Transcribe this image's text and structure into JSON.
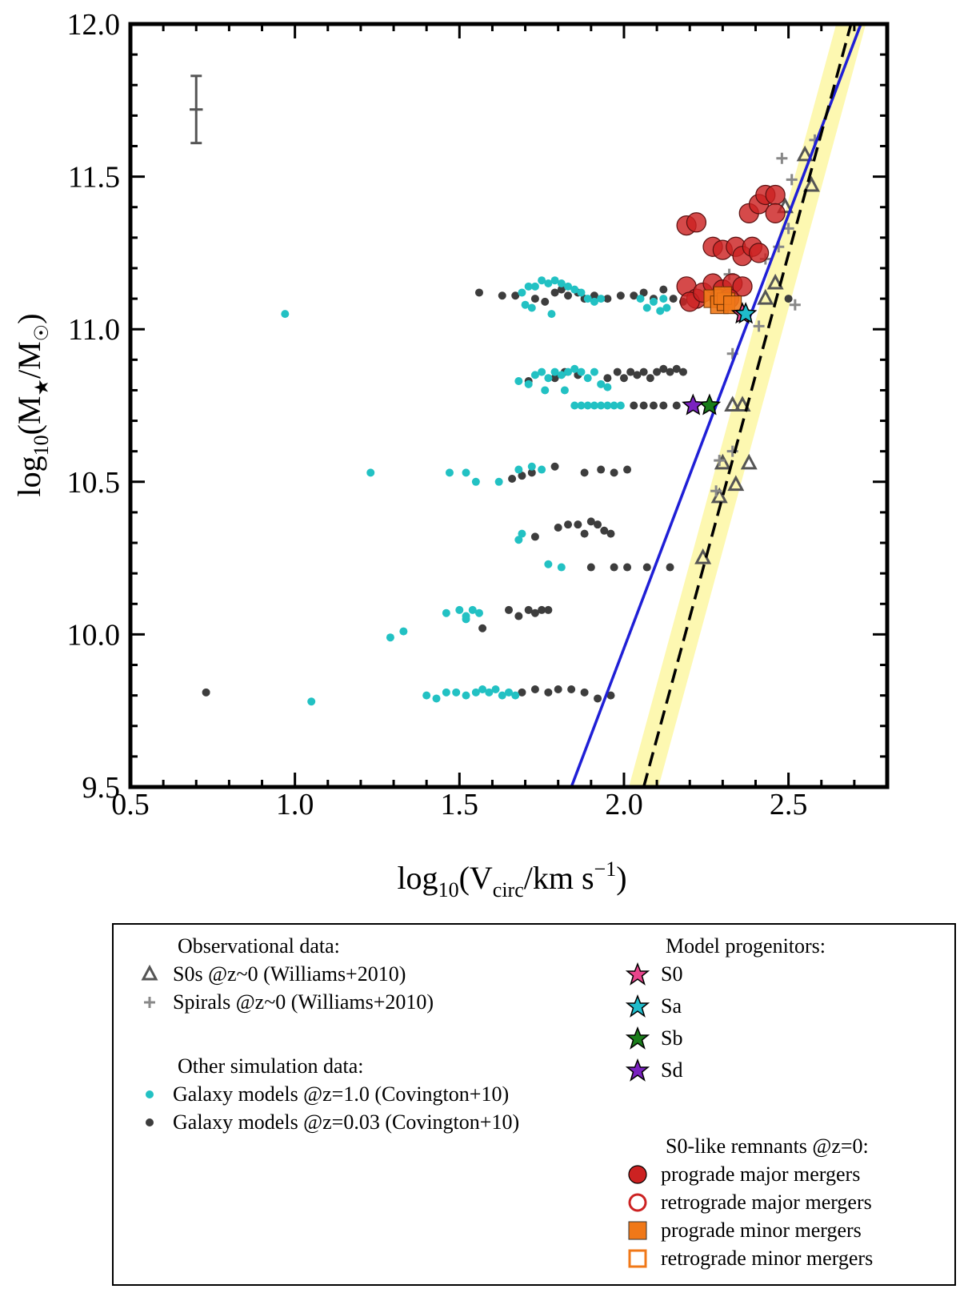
{
  "chart_data": {
    "type": "scatter",
    "xlabel_parts": {
      "base": "log",
      "base_sub": "10",
      "open": "(V",
      "sub": "circ",
      "mid": "/km s",
      "sup": "−1",
      "close": ")"
    },
    "ylabel_parts": {
      "base": "log",
      "base_sub": "10",
      "open": "(M",
      "sub": "★",
      "mid": "/M",
      "sub2": "☉",
      "close": ")"
    },
    "xlim": [
      0.5,
      2.8
    ],
    "ylim": [
      9.5,
      12.0
    ],
    "xticks": [
      "0.5",
      "1.0",
      "1.5",
      "2.0",
      "2.5"
    ],
    "yticks": [
      "9.5",
      "10.0",
      "10.5",
      "11.0",
      "11.5",
      "12.0"
    ],
    "error_bar": {
      "x": 0.7,
      "y": 11.72,
      "xerr": 0.02,
      "yerr": 0.11
    },
    "lines": [
      {
        "name": "blue fit",
        "color": "#1f1fd6",
        "style": "solid",
        "points": [
          [
            1.84,
            9.5
          ],
          [
            2.72,
            12.0
          ]
        ]
      },
      {
        "name": "dashed fit",
        "color": "#000000",
        "style": "dashed",
        "points": [
          [
            2.06,
            9.5
          ],
          [
            2.69,
            12.0
          ]
        ],
        "band": 0.045,
        "band_color": "#fdf7a3"
      }
    ],
    "series": [
      {
        "name": "s0s",
        "marker": "triangle",
        "color": "#555555",
        "points": [
          [
            2.24,
            10.25
          ],
          [
            2.29,
            10.45
          ],
          [
            2.3,
            10.56
          ],
          [
            2.34,
            10.49
          ],
          [
            2.38,
            10.56
          ],
          [
            2.33,
            10.75
          ],
          [
            2.36,
            10.75
          ],
          [
            2.43,
            11.1
          ],
          [
            2.46,
            11.15
          ],
          [
            2.49,
            11.4
          ],
          [
            2.57,
            11.47
          ],
          [
            2.55,
            11.57
          ]
        ]
      },
      {
        "name": "spirals",
        "marker": "plus",
        "color": "#888888",
        "points": [
          [
            2.28,
            10.47
          ],
          [
            2.33,
            10.6
          ],
          [
            2.29,
            10.57
          ],
          [
            2.33,
            10.92
          ],
          [
            2.41,
            11.01
          ],
          [
            2.32,
            11.18
          ],
          [
            2.47,
            11.27
          ],
          [
            2.43,
            11.23
          ],
          [
            2.5,
            11.33
          ],
          [
            2.51,
            11.49
          ],
          [
            2.48,
            11.56
          ],
          [
            2.58,
            11.62
          ],
          [
            2.52,
            11.08
          ],
          [
            2.29,
            11.12
          ]
        ]
      },
      {
        "name": "covington_z1",
        "marker": "dot",
        "color": "#22c1c3",
        "points": [
          [
            0.97,
            11.05
          ],
          [
            1.05,
            9.78
          ],
          [
            1.23,
            10.53
          ],
          [
            1.29,
            9.99
          ],
          [
            1.33,
            10.01
          ],
          [
            1.4,
            9.8
          ],
          [
            1.43,
            9.79
          ],
          [
            1.46,
            9.81
          ],
          [
            1.49,
            9.81
          ],
          [
            1.52,
            9.8
          ],
          [
            1.55,
            9.81
          ],
          [
            1.57,
            9.82
          ],
          [
            1.59,
            9.81
          ],
          [
            1.61,
            9.82
          ],
          [
            1.63,
            9.8
          ],
          [
            1.65,
            9.81
          ],
          [
            1.67,
            9.8
          ],
          [
            1.46,
            10.07
          ],
          [
            1.5,
            10.08
          ],
          [
            1.52,
            10.06
          ],
          [
            1.54,
            10.08
          ],
          [
            1.56,
            10.07
          ],
          [
            1.52,
            10.05
          ],
          [
            1.47,
            10.53
          ],
          [
            1.52,
            10.53
          ],
          [
            1.55,
            10.5
          ],
          [
            1.62,
            10.5
          ],
          [
            1.68,
            10.54
          ],
          [
            1.72,
            10.55
          ],
          [
            1.75,
            10.54
          ],
          [
            1.68,
            10.31
          ],
          [
            1.69,
            10.33
          ],
          [
            1.77,
            10.23
          ],
          [
            1.81,
            10.22
          ],
          [
            1.68,
            10.83
          ],
          [
            1.71,
            10.82
          ],
          [
            1.73,
            10.85
          ],
          [
            1.75,
            10.86
          ],
          [
            1.77,
            10.84
          ],
          [
            1.79,
            10.86
          ],
          [
            1.81,
            10.85
          ],
          [
            1.83,
            10.86
          ],
          [
            1.85,
            10.87
          ],
          [
            1.87,
            10.86
          ],
          [
            1.89,
            10.84
          ],
          [
            1.91,
            10.86
          ],
          [
            1.93,
            10.82
          ],
          [
            1.95,
            10.81
          ],
          [
            1.76,
            10.8
          ],
          [
            1.82,
            10.8
          ],
          [
            1.85,
            10.75
          ],
          [
            1.87,
            10.75
          ],
          [
            1.89,
            10.75
          ],
          [
            1.91,
            10.75
          ],
          [
            1.93,
            10.75
          ],
          [
            1.95,
            10.75
          ],
          [
            1.97,
            10.75
          ],
          [
            1.99,
            10.75
          ],
          [
            1.69,
            11.12
          ],
          [
            1.71,
            11.14
          ],
          [
            1.73,
            11.14
          ],
          [
            1.75,
            11.16
          ],
          [
            1.77,
            11.15
          ],
          [
            1.79,
            11.16
          ],
          [
            1.81,
            11.15
          ],
          [
            1.83,
            11.14
          ],
          [
            1.85,
            11.13
          ],
          [
            1.87,
            11.12
          ],
          [
            1.89,
            11.1
          ],
          [
            1.91,
            11.09
          ],
          [
            1.93,
            11.1
          ],
          [
            1.7,
            11.08
          ],
          [
            1.72,
            11.07
          ],
          [
            1.78,
            11.05
          ],
          [
            2.05,
            11.1
          ],
          [
            2.07,
            11.07
          ],
          [
            2.09,
            11.09
          ],
          [
            2.11,
            11.06
          ],
          [
            2.13,
            11.07
          ],
          [
            2.12,
            11.1
          ]
        ]
      },
      {
        "name": "covington_z003",
        "marker": "dot",
        "color": "#3d3d3d",
        "points": [
          [
            0.73,
            9.81
          ],
          [
            1.57,
            10.02
          ],
          [
            1.65,
            10.08
          ],
          [
            1.68,
            10.06
          ],
          [
            1.71,
            10.08
          ],
          [
            1.73,
            10.07
          ],
          [
            1.75,
            10.08
          ],
          [
            1.77,
            10.08
          ],
          [
            1.69,
            9.81
          ],
          [
            1.73,
            9.82
          ],
          [
            1.77,
            9.81
          ],
          [
            1.8,
            9.82
          ],
          [
            1.84,
            9.82
          ],
          [
            1.88,
            9.81
          ],
          [
            1.92,
            9.79
          ],
          [
            1.96,
            9.8
          ],
          [
            1.66,
            10.51
          ],
          [
            1.69,
            10.52
          ],
          [
            1.72,
            10.53
          ],
          [
            1.79,
            10.55
          ],
          [
            1.88,
            10.53
          ],
          [
            1.93,
            10.54
          ],
          [
            1.97,
            10.53
          ],
          [
            2.01,
            10.54
          ],
          [
            1.73,
            10.32
          ],
          [
            1.8,
            10.35
          ],
          [
            1.83,
            10.36
          ],
          [
            1.86,
            10.36
          ],
          [
            1.88,
            10.33
          ],
          [
            1.9,
            10.37
          ],
          [
            1.92,
            10.36
          ],
          [
            1.94,
            10.34
          ],
          [
            1.96,
            10.33
          ],
          [
            1.9,
            10.22
          ],
          [
            1.97,
            10.22
          ],
          [
            2.01,
            10.22
          ],
          [
            2.07,
            10.22
          ],
          [
            2.14,
            10.22
          ],
          [
            1.71,
            10.83
          ],
          [
            1.79,
            10.84
          ],
          [
            1.82,
            10.86
          ],
          [
            1.86,
            10.85
          ],
          [
            1.95,
            10.84
          ],
          [
            1.98,
            10.86
          ],
          [
            2.0,
            10.84
          ],
          [
            2.02,
            10.86
          ],
          [
            2.04,
            10.85
          ],
          [
            2.06,
            10.86
          ],
          [
            2.08,
            10.84
          ],
          [
            2.1,
            10.86
          ],
          [
            2.12,
            10.87
          ],
          [
            2.14,
            10.86
          ],
          [
            2.16,
            10.87
          ],
          [
            2.18,
            10.86
          ],
          [
            2.03,
            10.75
          ],
          [
            2.06,
            10.75
          ],
          [
            2.09,
            10.75
          ],
          [
            2.12,
            10.75
          ],
          [
            2.16,
            10.75
          ],
          [
            1.56,
            11.12
          ],
          [
            1.63,
            11.11
          ],
          [
            1.67,
            11.11
          ],
          [
            1.73,
            11.1
          ],
          [
            1.76,
            11.09
          ],
          [
            1.79,
            11.12
          ],
          [
            1.81,
            11.13
          ],
          [
            1.83,
            11.11
          ],
          [
            1.86,
            11.12
          ],
          [
            1.88,
            11.1
          ],
          [
            1.91,
            11.11
          ],
          [
            1.95,
            11.1
          ],
          [
            1.99,
            11.11
          ],
          [
            2.03,
            11.11
          ],
          [
            2.06,
            11.12
          ],
          [
            2.09,
            11.1
          ],
          [
            2.12,
            11.13
          ],
          [
            2.15,
            11.1
          ],
          [
            2.18,
            11.09
          ],
          [
            2.5,
            11.1
          ]
        ]
      },
      {
        "name": "prograde_major",
        "marker": "circle",
        "color": "#cc2222",
        "points": [
          [
            2.19,
            11.34
          ],
          [
            2.22,
            11.35
          ],
          [
            2.27,
            11.27
          ],
          [
            2.3,
            11.26
          ],
          [
            2.34,
            11.27
          ],
          [
            2.36,
            11.24
          ],
          [
            2.39,
            11.27
          ],
          [
            2.41,
            11.25
          ],
          [
            2.38,
            11.38
          ],
          [
            2.41,
            11.41
          ],
          [
            2.43,
            11.44
          ],
          [
            2.46,
            11.44
          ],
          [
            2.46,
            11.38
          ],
          [
            2.19,
            11.14
          ],
          [
            2.22,
            11.1
          ],
          [
            2.2,
            11.09
          ],
          [
            2.24,
            11.12
          ],
          [
            2.27,
            11.15
          ],
          [
            2.3,
            11.13
          ],
          [
            2.33,
            11.15
          ],
          [
            2.36,
            11.14
          ],
          [
            2.29,
            11.1
          ],
          [
            2.32,
            11.1
          ]
        ]
      },
      {
        "name": "prograde_minor",
        "marker": "square",
        "color": "#f07818",
        "points": [
          [
            2.27,
            11.1
          ],
          [
            2.29,
            11.08
          ],
          [
            2.31,
            11.09
          ],
          [
            2.3,
            11.11
          ],
          [
            2.33,
            11.08
          ]
        ]
      },
      {
        "name": "progenitors",
        "marker": "star",
        "points": [
          [
            2.36,
            11.05,
            "#e8458c"
          ],
          [
            2.37,
            11.05,
            "#1fbccb"
          ],
          [
            2.26,
            10.75,
            "#1a7d1a"
          ],
          [
            2.21,
            10.75,
            "#7a22c0"
          ]
        ]
      }
    ]
  },
  "legend": {
    "obs_title": "Observational data:",
    "obs_items": [
      "S0s @z~0 (Williams+2010)",
      "Spirals @z~0 (Williams+2010)"
    ],
    "sim_title": "Other simulation data:",
    "sim_items": [
      "Galaxy models @z=1.0 (Covington+10)",
      "Galaxy models @z=0.03 (Covington+10)"
    ],
    "prog_title": "Model progenitors:",
    "prog_items": [
      "S0",
      "Sa",
      "Sb",
      "Sd"
    ],
    "prog_colors": [
      "#e8458c",
      "#1fbccb",
      "#1a7d1a",
      "#7a22c0"
    ],
    "rem_title": "S0-like remnants @z=0:",
    "rem_items": [
      "prograde major mergers",
      "retrograde major mergers",
      "prograde minor mergers",
      "retrograde minor mergers"
    ],
    "rem_colors": {
      "major": "#cc2222",
      "minor": "#f07818"
    }
  }
}
